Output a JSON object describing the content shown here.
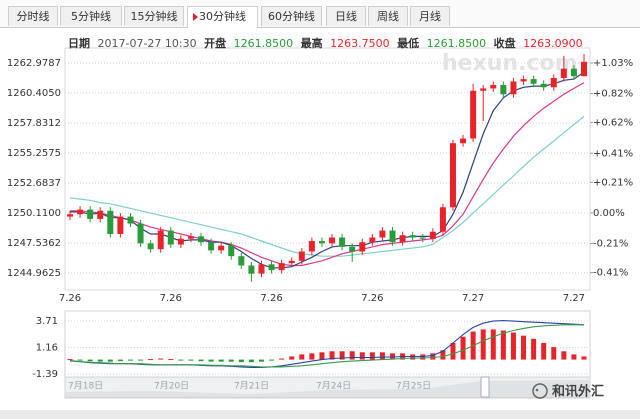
{
  "tabs": [
    "分时线",
    "5分钟线",
    "15分钟线",
    "30分钟线",
    "60分钟线",
    "日线",
    "周线",
    "月线"
  ],
  "active_tab": 3,
  "info": {
    "date_label": "日期",
    "date": "2017-07-27 10:30",
    "open_label": "开盘",
    "open": "1261.8500",
    "high_label": "最高",
    "high": "1263.7500",
    "low_label": "最低",
    "low": "1261.8500",
    "close_label": "收盘",
    "close": "1263.0900"
  },
  "watermark": "hexun.com",
  "brand": "和讯外汇",
  "navigator": {
    "labels": [
      "7月18日",
      "7月20日",
      "7月21日",
      "7月24日",
      "7月25日"
    ]
  },
  "chart_data": [
    {
      "type": "candlestick",
      "categories": [
        "7.26",
        null,
        null,
        null,
        null,
        null,
        null,
        null,
        null,
        null,
        "7.26",
        null,
        null,
        null,
        null,
        null,
        null,
        null,
        null,
        null,
        "7.26",
        null,
        null,
        null,
        null,
        null,
        null,
        null,
        null,
        null,
        "7.26",
        null,
        null,
        null,
        null,
        null,
        null,
        null,
        null,
        null,
        "7.27",
        null,
        null,
        null,
        null,
        null,
        null,
        null,
        null,
        null,
        "7.27",
        null
      ],
      "open": [
        1249.8,
        1250.0,
        1250.4,
        1249.6,
        1250.3,
        1248.3,
        1249.8,
        1249.2,
        1247.5,
        1247.0,
        1248.6,
        1247.4,
        1247.9,
        1248.1,
        1247.6,
        1246.9,
        1247.3,
        1246.4,
        1245.6,
        1244.9,
        1245.7,
        1245.2,
        1245.8,
        1246.0,
        1246.8,
        1247.7,
        1247.5,
        1248.0,
        1247.2,
        1246.8,
        1247.6,
        1248.0,
        1248.6,
        1247.6,
        1248.2,
        1248.0,
        1247.9,
        1248.5,
        1250.6,
        1256.1,
        1256.5,
        1260.6,
        1260.8,
        1261.1,
        1260.3,
        1261.4,
        1261.6,
        1261.2,
        1260.9,
        1261.7,
        1262.5,
        1261.85
      ],
      "high": [
        1250.3,
        1250.7,
        1250.7,
        1250.6,
        1250.6,
        1250.1,
        1250.1,
        1249.5,
        1247.8,
        1248.9,
        1248.9,
        1248.2,
        1248.4,
        1248.4,
        1247.9,
        1247.6,
        1247.6,
        1246.7,
        1245.9,
        1246.0,
        1246.0,
        1246.1,
        1246.3,
        1247.1,
        1248.0,
        1248.0,
        1248.3,
        1248.3,
        1247.5,
        1247.9,
        1248.3,
        1248.9,
        1248.9,
        1248.5,
        1248.5,
        1248.3,
        1248.8,
        1250.9,
        1256.4,
        1256.8,
        1261.2,
        1261.1,
        1261.4,
        1261.4,
        1261.7,
        1261.9,
        1261.9,
        1261.5,
        1262.0,
        1263.6,
        1262.8,
        1263.75
      ],
      "low": [
        1249.5,
        1249.7,
        1249.3,
        1249.3,
        1248.0,
        1248.0,
        1248.9,
        1247.2,
        1246.7,
        1246.7,
        1247.1,
        1247.1,
        1247.6,
        1247.3,
        1246.6,
        1246.6,
        1246.1,
        1245.3,
        1244.2,
        1244.6,
        1244.9,
        1244.9,
        1245.5,
        1245.7,
        1246.5,
        1247.2,
        1247.2,
        1246.9,
        1245.9,
        1246.5,
        1247.3,
        1247.7,
        1247.3,
        1247.3,
        1247.7,
        1247.6,
        1247.6,
        1248.2,
        1250.3,
        1255.8,
        1256.2,
        1258.0,
        1260.5,
        1260.0,
        1260.0,
        1261.1,
        1260.9,
        1260.6,
        1260.6,
        1261.4,
        1261.55,
        1261.85
      ],
      "close": [
        1250.0,
        1250.4,
        1249.6,
        1250.3,
        1248.3,
        1249.8,
        1249.2,
        1247.5,
        1247.0,
        1248.6,
        1247.4,
        1247.9,
        1248.1,
        1247.6,
        1246.9,
        1247.3,
        1246.4,
        1245.6,
        1244.9,
        1245.7,
        1245.2,
        1245.8,
        1246.0,
        1246.8,
        1247.7,
        1247.5,
        1248.0,
        1247.2,
        1246.8,
        1247.6,
        1248.0,
        1248.6,
        1247.6,
        1248.2,
        1248.0,
        1247.9,
        1248.5,
        1250.6,
        1256.1,
        1256.5,
        1260.6,
        1260.8,
        1261.1,
        1260.3,
        1261.4,
        1261.6,
        1261.2,
        1260.9,
        1261.7,
        1262.5,
        1261.85,
        1263.09
      ],
      "up_color": "#e8242b",
      "down_color": "#2a9b3a",
      "series": [
        {
          "color": "#7fcfc7",
          "values": [
            1251.4,
            1251.3,
            1251.2,
            1251.0,
            1250.9,
            1250.7,
            1250.5,
            1250.3,
            1250.1,
            1249.9,
            1249.7,
            1249.5,
            1249.3,
            1249.1,
            1248.9,
            1248.7,
            1248.5,
            1248.3,
            1248.0,
            1247.7,
            1247.4,
            1247.1,
            1246.8,
            1246.6,
            1246.5,
            1246.4,
            1246.4,
            1246.4,
            1246.5,
            1246.6,
            1246.7,
            1246.8,
            1246.9,
            1247.0,
            1247.1,
            1247.2,
            1247.4,
            1248.0,
            1248.6,
            1249.3,
            1250.1,
            1250.9,
            1251.7,
            1252.5,
            1253.3,
            1254.1,
            1254.9,
            1255.6,
            1256.3,
            1257.0,
            1257.7,
            1258.4
          ]
        },
        {
          "color": "#d9388a",
          "values": [
            1250.3,
            1250.3,
            1250.2,
            1250.1,
            1249.9,
            1249.7,
            1249.5,
            1249.2,
            1248.9,
            1248.7,
            1248.5,
            1248.3,
            1248.1,
            1247.9,
            1247.7,
            1247.6,
            1247.4,
            1247.1,
            1246.7,
            1246.3,
            1246.0,
            1245.7,
            1245.6,
            1245.6,
            1245.8,
            1246.0,
            1246.3,
            1246.6,
            1246.8,
            1247.0,
            1247.2,
            1247.4,
            1247.5,
            1247.6,
            1247.7,
            1247.8,
            1247.9,
            1248.2,
            1249.0,
            1250.0,
            1251.5,
            1253.0,
            1254.4,
            1255.6,
            1256.7,
            1257.6,
            1258.4,
            1259.1,
            1259.7,
            1260.3,
            1260.8,
            1261.3
          ]
        },
        {
          "color": "#2d3f86",
          "values": [
            1250.2,
            1250.2,
            1250.0,
            1250.1,
            1249.7,
            1249.7,
            1249.5,
            1248.8,
            1248.3,
            1248.3,
            1248.0,
            1247.7,
            1247.8,
            1247.8,
            1247.6,
            1247.6,
            1247.3,
            1246.8,
            1246.2,
            1245.7,
            1245.4,
            1245.4,
            1245.5,
            1245.9,
            1246.3,
            1246.8,
            1247.2,
            1247.3,
            1247.3,
            1247.3,
            1247.6,
            1247.7,
            1247.8,
            1248.0,
            1248.1,
            1248.1,
            1248.1,
            1248.6,
            1250.0,
            1251.9,
            1254.4,
            1256.9,
            1258.9,
            1260.0,
            1260.6,
            1260.9,
            1261.0,
            1261.0,
            1261.2,
            1261.5,
            1261.6,
            1262.2
          ]
        }
      ],
      "ylim": [
        1243.84,
        1264.1
      ],
      "yticks": [
        1262.9787,
        {
          "value": 1260.405,
          "label": "1260.4050"
        },
        1257.8312,
        1255.2575,
        1252.6837,
        {
          "value": 1250.11,
          "label": "1250.1100"
        },
        1247.5362,
        1244.9625
      ],
      "y2lim": [
        -0.5016,
        1.1191
      ],
      "y2ticks": [
        {
          "value": 1.03,
          "label": "+1.03%"
        },
        {
          "value": 0.82,
          "label": "+0.82%"
        },
        {
          "value": 0.62,
          "label": "+0.62%"
        },
        {
          "value": 0.41,
          "label": "+0.41%"
        },
        {
          "value": 0.21,
          "label": "+0.21%"
        },
        {
          "value": 0,
          "label": "0.00%"
        },
        {
          "value": -0.21,
          "label": "-0.21%"
        },
        {
          "value": -0.41,
          "label": "-0.41%"
        }
      ],
      "grid": true
    },
    {
      "type": "macd",
      "values": [
        0.05,
        -0.1,
        -0.15,
        -0.2,
        -0.2,
        -0.15,
        -0.1,
        -0.05,
        0.05,
        0.1,
        0.05,
        -0.05,
        -0.1,
        -0.15,
        -0.2,
        -0.2,
        -0.2,
        -0.25,
        -0.25,
        -0.2,
        -0.1,
        0.1,
        0.3,
        0.5,
        0.6,
        0.7,
        0.8,
        0.8,
        0.8,
        0.7,
        0.7,
        0.7,
        0.6,
        0.6,
        0.5,
        0.5,
        0.6,
        0.9,
        1.6,
        2.2,
        2.7,
        2.9,
        2.9,
        2.8,
        2.6,
        2.3,
        2.0,
        1.6,
        1.2,
        0.8,
        0.5,
        0.3
      ],
      "up_color": "#e8242b",
      "down_color": "#2a9b3a",
      "series": [
        {
          "color": "#2346a8",
          "values": [
            -0.1,
            -0.2,
            -0.3,
            -0.35,
            -0.4,
            -0.4,
            -0.4,
            -0.45,
            -0.5,
            -0.5,
            -0.5,
            -0.5,
            -0.5,
            -0.55,
            -0.6,
            -0.6,
            -0.65,
            -0.7,
            -0.75,
            -0.75,
            -0.7,
            -0.6,
            -0.45,
            -0.3,
            -0.15,
            0.0,
            0.1,
            0.15,
            0.2,
            0.2,
            0.2,
            0.25,
            0.25,
            0.3,
            0.3,
            0.3,
            0.4,
            0.8,
            1.6,
            2.4,
            3.1,
            3.5,
            3.7,
            3.75,
            3.7,
            3.65,
            3.6,
            3.55,
            3.5,
            3.45,
            3.4,
            3.35
          ]
        },
        {
          "color": "#3a9a4a",
          "values": [
            -0.15,
            -0.2,
            -0.25,
            -0.3,
            -0.35,
            -0.4,
            -0.4,
            -0.4,
            -0.45,
            -0.5,
            -0.5,
            -0.5,
            -0.5,
            -0.5,
            -0.55,
            -0.55,
            -0.6,
            -0.6,
            -0.65,
            -0.7,
            -0.7,
            -0.7,
            -0.65,
            -0.6,
            -0.5,
            -0.4,
            -0.3,
            -0.2,
            -0.15,
            -0.1,
            -0.05,
            0.0,
            0.05,
            0.1,
            0.15,
            0.15,
            0.2,
            0.3,
            0.55,
            0.9,
            1.35,
            1.8,
            2.2,
            2.55,
            2.8,
            3.0,
            3.15,
            3.25,
            3.3,
            3.35,
            3.35,
            3.35
          ]
        }
      ],
      "ylim": [
        -1.58,
        4.29
      ],
      "yticks": [
        3.71,
        1.16,
        -1.39
      ],
      "grid": true
    }
  ]
}
